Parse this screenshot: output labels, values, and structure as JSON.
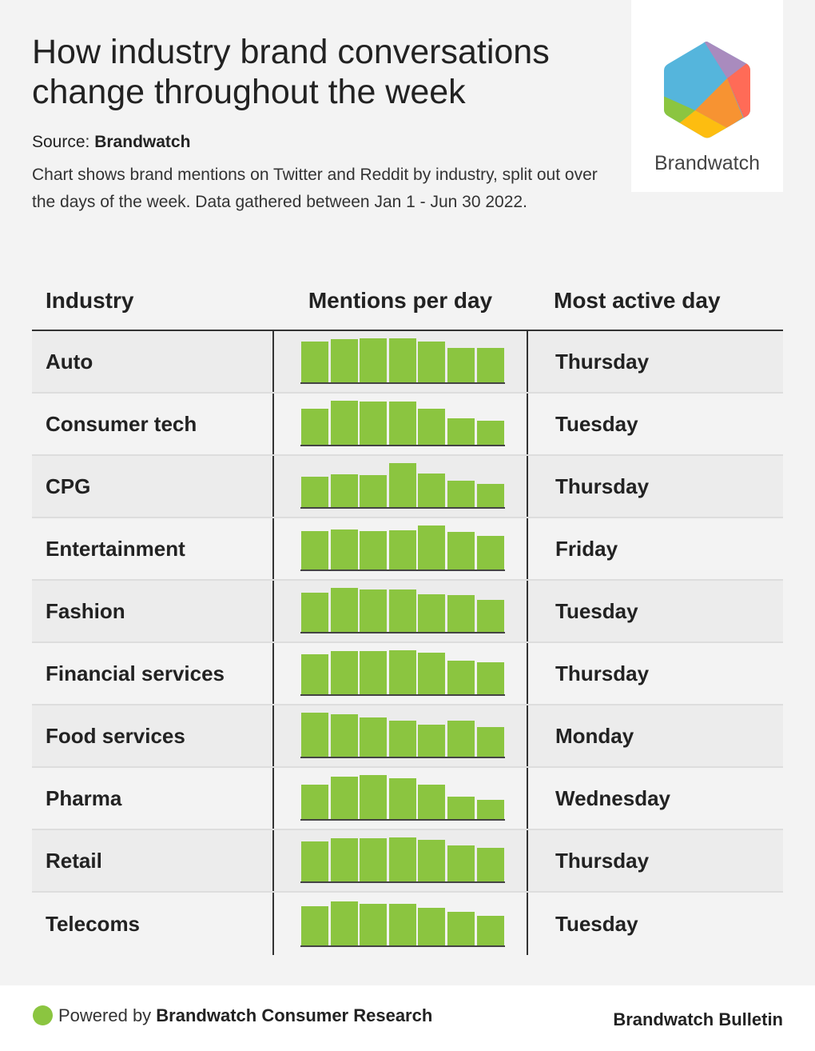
{
  "title": "How industry brand conversations change throughout the week",
  "source_label": "Source:",
  "source_name": "Brandwatch",
  "description": "Chart shows brand mentions on Twitter and Reddit by industry, split out over the days of the week. Data gathered between Jan 1 - Jun 30 2022.",
  "logo_text": "Brandwatch",
  "colors": {
    "bar": "#8bc540",
    "background": "#f3f3f3"
  },
  "footer": {
    "powered_prefix": "Powered by ",
    "powered_name": "Brandwatch Consumer Research",
    "bulletin": "Brandwatch Bulletin"
  },
  "chart_data": {
    "type": "table",
    "columns": [
      "Industry",
      "Mentions per day",
      "Most active day"
    ],
    "value_note": "bars relative to each row's maximum (100), Monday to Sunday",
    "rows": [
      {
        "industry": "Auto",
        "values": [
          93,
          98,
          100,
          100,
          93,
          78,
          78
        ],
        "most_active": "Thursday"
      },
      {
        "industry": "Consumer tech",
        "values": [
          82,
          100,
          98,
          98,
          82,
          60,
          55
        ],
        "most_active": "Tuesday"
      },
      {
        "industry": "CPG",
        "values": [
          69,
          75,
          73,
          100,
          76,
          60,
          53
        ],
        "most_active": "Thursday"
      },
      {
        "industry": "Entertainment",
        "values": [
          87,
          91,
          87,
          89,
          100,
          85,
          76
        ],
        "most_active": "Friday"
      },
      {
        "industry": "Fashion",
        "values": [
          89,
          100,
          96,
          96,
          85,
          84,
          73
        ],
        "most_active": "Tuesday"
      },
      {
        "industry": "Financial services",
        "values": [
          91,
          98,
          98,
          100,
          95,
          76,
          73
        ],
        "most_active": "Thursday"
      },
      {
        "industry": "Food services",
        "values": [
          100,
          96,
          89,
          82,
          73,
          82,
          67
        ],
        "most_active": "Monday"
      },
      {
        "industry": "Pharma",
        "values": [
          78,
          96,
          100,
          93,
          78,
          51,
          44
        ],
        "most_active": "Wednesday"
      },
      {
        "industry": "Retail",
        "values": [
          91,
          98,
          98,
          100,
          95,
          82,
          76
        ],
        "most_active": "Thursday"
      },
      {
        "industry": "Telecoms",
        "values": [
          89,
          100,
          95,
          95,
          85,
          76,
          67
        ],
        "most_active": "Tuesday"
      }
    ]
  }
}
